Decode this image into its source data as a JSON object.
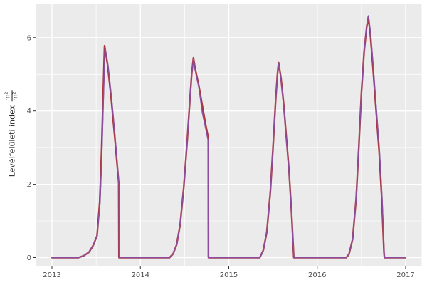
{
  "chart_data": {
    "type": "line",
    "title": "",
    "xlabel": "",
    "ylabel": {
      "text": "Levélfelületi index",
      "unit_fraction": {
        "numerator": "m²",
        "denominator": "m²"
      }
    },
    "panel_bg": "#EBEBEB",
    "outer_bg": "#FFFFFF",
    "grid": {
      "major_color": "#FFFFFF",
      "minor_color": "#FFFFFF",
      "minor_x": [
        2013.5,
        2014.5,
        2015.5,
        2016.5
      ],
      "minor_y": [
        1,
        3,
        5
      ]
    },
    "axis": {
      "tick_color": "#333333",
      "label_color": "#4D4D4D",
      "x_tick_values": [
        2013,
        2014,
        2015,
        2016,
        2017
      ],
      "x_tick_labels": [
        "2013",
        "2014",
        "2015",
        "2016",
        "2017"
      ],
      "y_tick_values": [
        0,
        2,
        4,
        6
      ],
      "y_tick_labels": [
        "0",
        "2",
        "4",
        "6"
      ]
    },
    "xlim": [
      2012.82,
      2017.18
    ],
    "ylim": [
      -0.22,
      6.93
    ],
    "legend": "none",
    "series": [
      {
        "name": "lai-model-red",
        "color": "#A93642",
        "width": 2.4,
        "points": [
          [
            2013.0,
            0
          ],
          [
            2013.3,
            0
          ],
          [
            2013.36,
            0.05
          ],
          [
            2013.42,
            0.15
          ],
          [
            2013.47,
            0.35
          ],
          [
            2013.51,
            0.6
          ],
          [
            2013.54,
            1.5
          ],
          [
            2013.56,
            2.8
          ],
          [
            2013.58,
            4.5
          ],
          [
            2013.595,
            5.78
          ],
          [
            2013.63,
            5.25
          ],
          [
            2013.67,
            4.35
          ],
          [
            2013.71,
            3.3
          ],
          [
            2013.755,
            2.05
          ],
          [
            2013.758,
            0
          ],
          [
            2014.0,
            0
          ],
          [
            2014.33,
            0
          ],
          [
            2014.37,
            0.1
          ],
          [
            2014.41,
            0.35
          ],
          [
            2014.45,
            0.9
          ],
          [
            2014.49,
            1.9
          ],
          [
            2014.53,
            3.2
          ],
          [
            2014.56,
            4.3
          ],
          [
            2014.58,
            5.0
          ],
          [
            2014.6,
            5.45
          ],
          [
            2014.62,
            5.15
          ],
          [
            2014.66,
            4.7
          ],
          [
            2014.7,
            4.15
          ],
          [
            2014.74,
            3.6
          ],
          [
            2014.768,
            3.27
          ],
          [
            2014.77,
            0
          ],
          [
            2015.0,
            0
          ],
          [
            2015.35,
            0
          ],
          [
            2015.39,
            0.2
          ],
          [
            2015.43,
            0.7
          ],
          [
            2015.47,
            1.8
          ],
          [
            2015.5,
            3.0
          ],
          [
            2015.53,
            4.3
          ],
          [
            2015.55,
            5.0
          ],
          [
            2015.563,
            5.32
          ],
          [
            2015.59,
            4.9
          ],
          [
            2015.62,
            4.2
          ],
          [
            2015.66,
            3.0
          ],
          [
            2015.68,
            2.4
          ],
          [
            2015.71,
            1.2
          ],
          [
            2015.735,
            0
          ],
          [
            2016.0,
            0
          ],
          [
            2016.33,
            0
          ],
          [
            2016.36,
            0.1
          ],
          [
            2016.4,
            0.5
          ],
          [
            2016.44,
            1.6
          ],
          [
            2016.47,
            3.0
          ],
          [
            2016.5,
            4.5
          ],
          [
            2016.53,
            5.6
          ],
          [
            2016.56,
            6.3
          ],
          [
            2016.578,
            6.56
          ],
          [
            2016.6,
            6.1
          ],
          [
            2016.63,
            5.2
          ],
          [
            2016.66,
            4.2
          ],
          [
            2016.7,
            2.9
          ],
          [
            2016.73,
            1.6
          ],
          [
            2016.755,
            0.15
          ],
          [
            2016.76,
            0
          ],
          [
            2017.0,
            0
          ]
        ]
      },
      {
        "name": "lai-model-purple",
        "color": "#8C4FA0",
        "width": 1.4,
        "points": [
          [
            2013.0,
            0
          ],
          [
            2013.3,
            0
          ],
          [
            2013.36,
            0.05
          ],
          [
            2013.42,
            0.15
          ],
          [
            2013.47,
            0.35
          ],
          [
            2013.51,
            0.6
          ],
          [
            2013.545,
            1.5
          ],
          [
            2013.565,
            2.8
          ],
          [
            2013.585,
            4.5
          ],
          [
            2013.6,
            5.74
          ],
          [
            2013.635,
            5.25
          ],
          [
            2013.675,
            4.35
          ],
          [
            2013.715,
            3.3
          ],
          [
            2013.758,
            2.0
          ],
          [
            2013.76,
            0
          ],
          [
            2014.0,
            0
          ],
          [
            2014.33,
            0
          ],
          [
            2014.37,
            0.1
          ],
          [
            2014.41,
            0.35
          ],
          [
            2014.45,
            0.9
          ],
          [
            2014.49,
            1.9
          ],
          [
            2014.53,
            3.2
          ],
          [
            2014.56,
            4.3
          ],
          [
            2014.58,
            5.0
          ],
          [
            2014.6,
            5.42
          ],
          [
            2014.62,
            5.1
          ],
          [
            2014.66,
            4.65
          ],
          [
            2014.7,
            3.95
          ],
          [
            2014.74,
            3.5
          ],
          [
            2014.765,
            3.2
          ],
          [
            2014.767,
            0
          ],
          [
            2015.0,
            0
          ],
          [
            2015.35,
            0
          ],
          [
            2015.39,
            0.2
          ],
          [
            2015.43,
            0.7
          ],
          [
            2015.47,
            1.8
          ],
          [
            2015.5,
            3.0
          ],
          [
            2015.53,
            4.3
          ],
          [
            2015.55,
            5.0
          ],
          [
            2015.565,
            5.3
          ],
          [
            2015.59,
            4.85
          ],
          [
            2015.62,
            4.15
          ],
          [
            2015.66,
            2.95
          ],
          [
            2015.68,
            2.35
          ],
          [
            2015.71,
            1.15
          ],
          [
            2015.737,
            0
          ],
          [
            2016.0,
            0
          ],
          [
            2016.33,
            0
          ],
          [
            2016.36,
            0.1
          ],
          [
            2016.4,
            0.5
          ],
          [
            2016.44,
            1.6
          ],
          [
            2016.47,
            3.0
          ],
          [
            2016.5,
            4.5
          ],
          [
            2016.53,
            5.6
          ],
          [
            2016.56,
            6.3
          ],
          [
            2016.58,
            6.6
          ],
          [
            2016.605,
            6.1
          ],
          [
            2016.635,
            5.2
          ],
          [
            2016.665,
            4.2
          ],
          [
            2016.705,
            2.9
          ],
          [
            2016.735,
            1.6
          ],
          [
            2016.757,
            0.15
          ],
          [
            2016.762,
            0
          ],
          [
            2017.0,
            0
          ]
        ]
      }
    ]
  }
}
